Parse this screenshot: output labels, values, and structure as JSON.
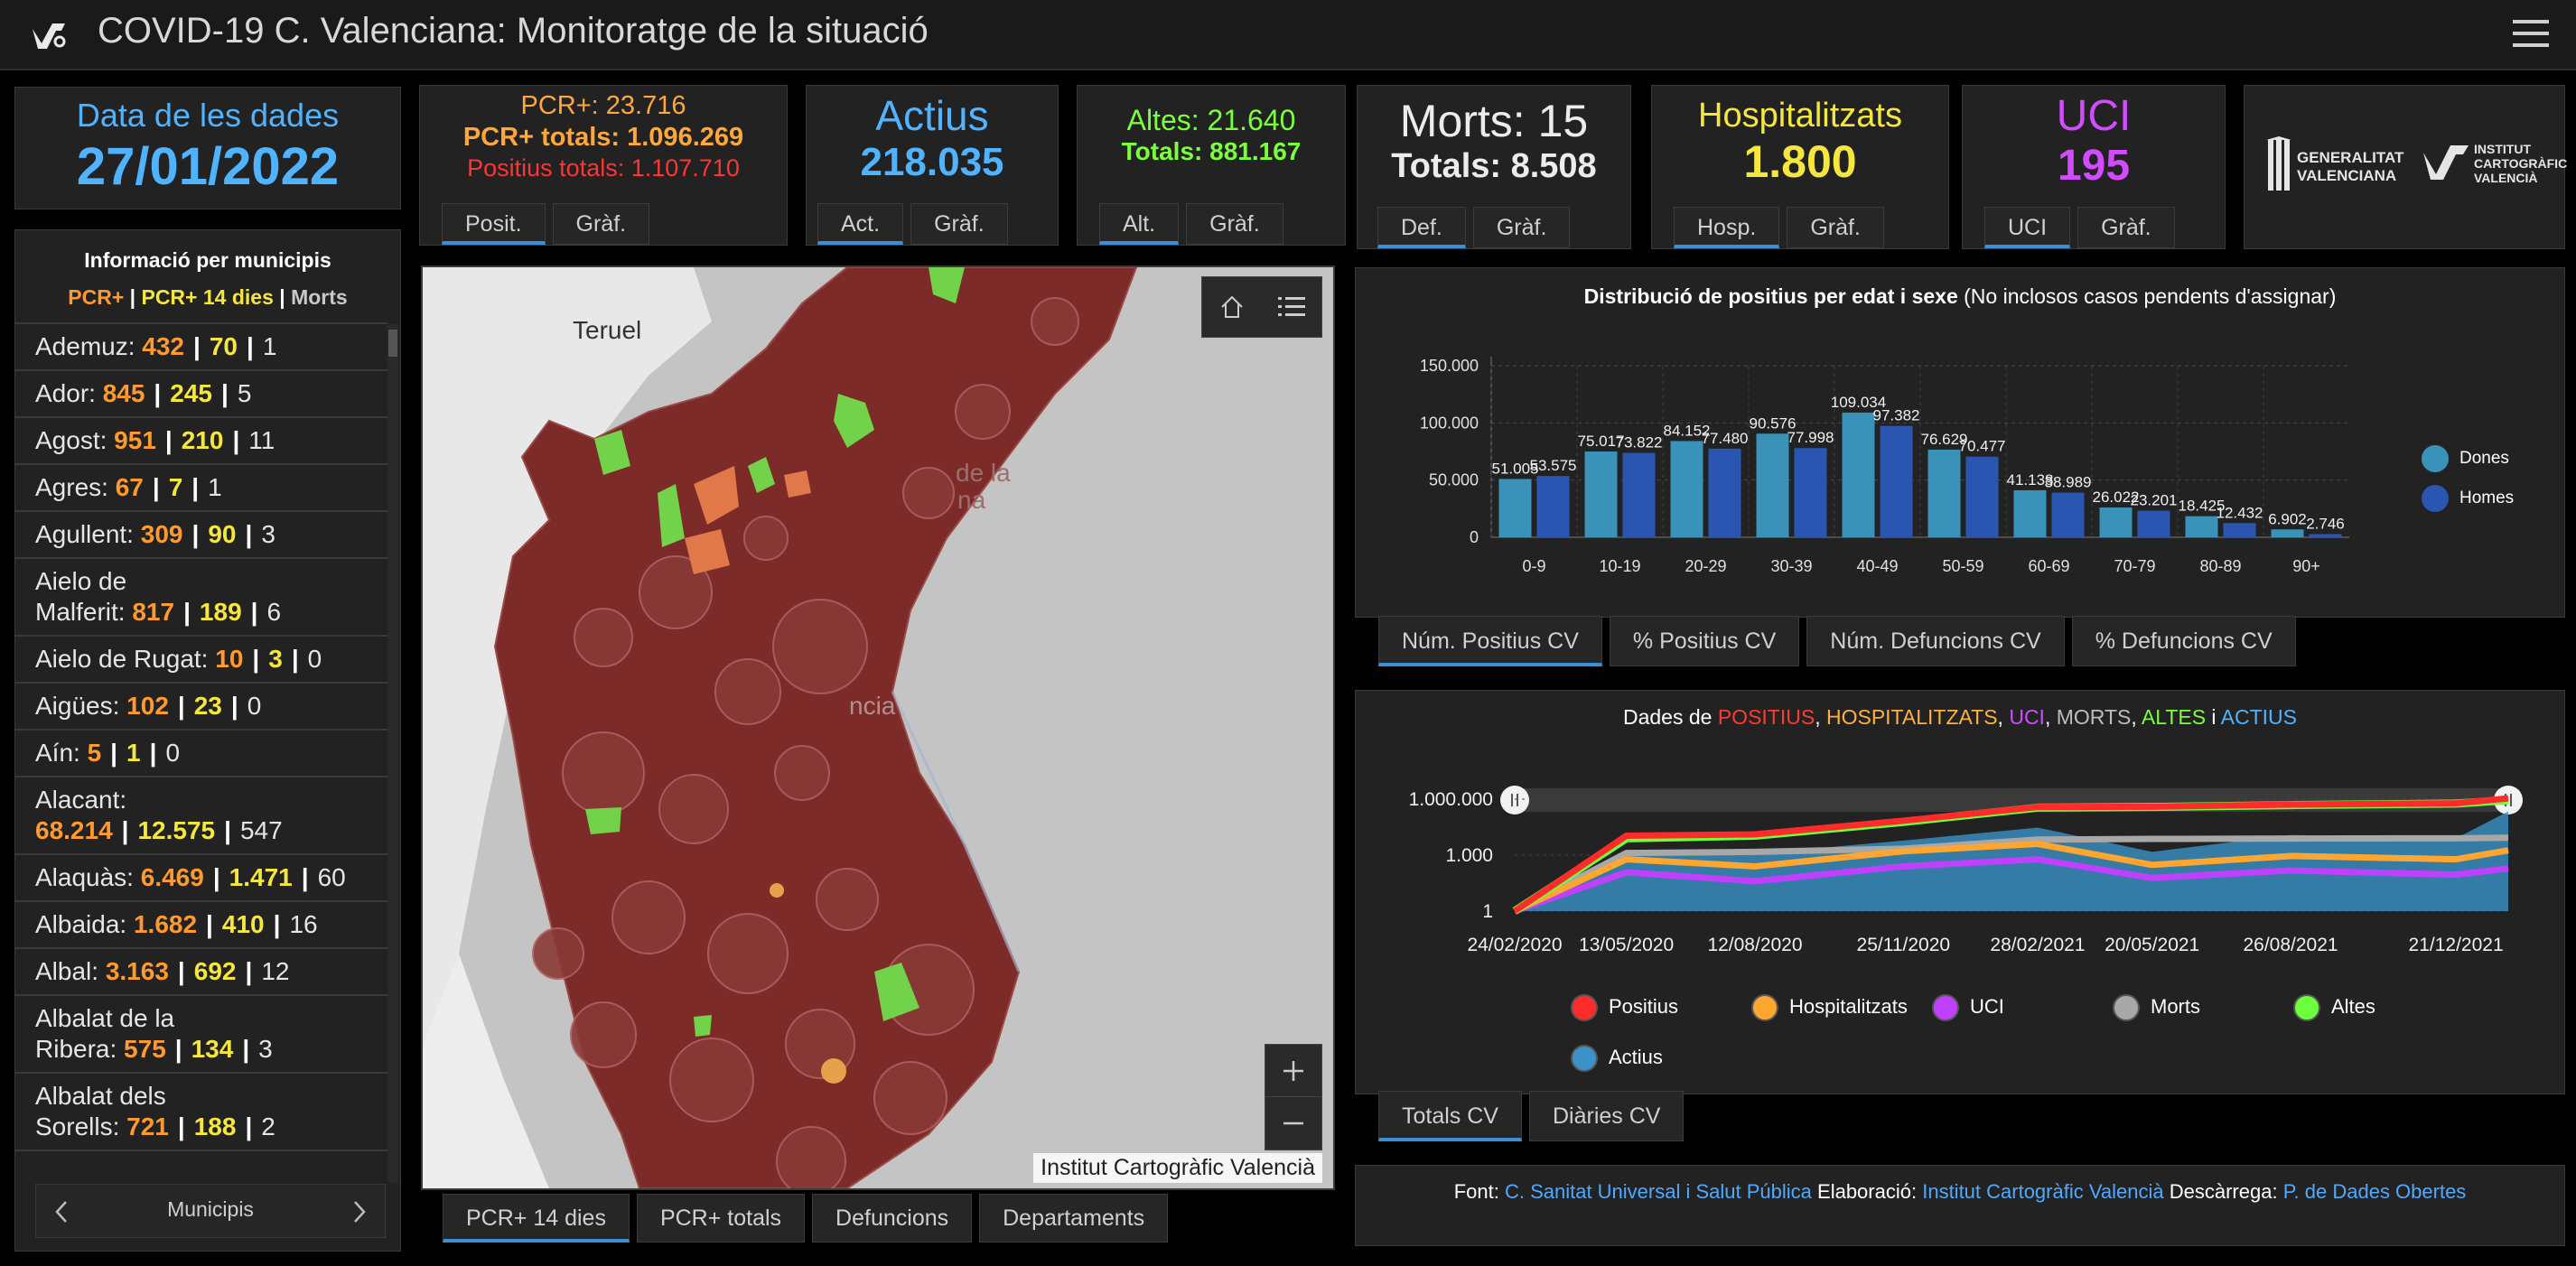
{
  "app": {
    "title": "COVID-19 C. Valenciana: Monitoratge de la situació"
  },
  "date_card": {
    "label": "Data de les dades",
    "value": "27/01/2022"
  },
  "pcr_card": {
    "line1": "PCR+: 23.716",
    "line2": "PCR+ totals: 1.096.269",
    "line3": "Positius totals: 1.107.710",
    "tabs": [
      "Posit.",
      "Gràf."
    ]
  },
  "actius_card": {
    "label": "Actius",
    "value": "218.035",
    "tabs": [
      "Act.",
      "Gràf."
    ]
  },
  "altes_card": {
    "line1": "Altes: 21.640",
    "line2": "Totals: 881.167",
    "tabs": [
      "Alt.",
      "Gràf."
    ]
  },
  "morts_card": {
    "line1": "Morts: 15",
    "line2": "Totals: 8.508",
    "tabs": [
      "Def.",
      "Gràf."
    ]
  },
  "hosp_card": {
    "label": "Hospitalitzats",
    "value": "1.800",
    "tabs": [
      "Hosp.",
      "Gràf."
    ]
  },
  "uci_card": {
    "label": "UCI",
    "value": "195",
    "tabs": [
      "UCI",
      "Gràf."
    ]
  },
  "logos": {
    "gva": "GENERALITAT VALENCIANA",
    "icv_1": "INSTITUT",
    "icv_2": "CARTOGRÀFIC",
    "icv_3": "VALENCIÀ"
  },
  "muni_panel": {
    "title": "Informació per municipis",
    "legend": {
      "pcr": "PCR+",
      "pcr14": "PCR+ 14 dies",
      "morts": "Morts",
      "sep": "|"
    },
    "rows": [
      {
        "name": "Ademuz:",
        "pcr": "432",
        "pcr14": "70",
        "morts": "1"
      },
      {
        "name": "Ador:",
        "pcr": "845",
        "pcr14": "245",
        "morts": "5"
      },
      {
        "name": "Agost:",
        "pcr": "951",
        "pcr14": "210",
        "morts": "11"
      },
      {
        "name": "Agres:",
        "pcr": "67",
        "pcr14": "7",
        "morts": "1"
      },
      {
        "name": "Agullent:",
        "pcr": "309",
        "pcr14": "90",
        "morts": "3"
      },
      {
        "name": "Aielo de",
        "name2": "Malferit:",
        "pcr": "817",
        "pcr14": "189",
        "morts": "6"
      },
      {
        "name": "Aielo de Rugat:",
        "pcr": "10",
        "pcr14": "3",
        "morts": "0"
      },
      {
        "name": "Aigües:",
        "pcr": "102",
        "pcr14": "23",
        "morts": "0"
      },
      {
        "name": "Aín:",
        "pcr": "5",
        "pcr14": "1",
        "morts": "0"
      },
      {
        "name": "Alacant:",
        "pcr": "68.214",
        "pcr14": "12.575",
        "morts": "547"
      },
      {
        "name": "Alaquàs:",
        "pcr": "6.469",
        "pcr14": "1.471",
        "morts": "60"
      },
      {
        "name": "Albaida:",
        "pcr": "1.682",
        "pcr14": "410",
        "morts": "16"
      },
      {
        "name": "Albal:",
        "pcr": "3.163",
        "pcr14": "692",
        "morts": "12"
      },
      {
        "name": "Albalat de la",
        "name2": "Ribera:",
        "pcr": "575",
        "pcr14": "134",
        "morts": "3"
      },
      {
        "name": "Albalat dels",
        "name2": "Sorells:",
        "pcr": "721",
        "pcr14": "188",
        "morts": "2"
      }
    ],
    "pager_label": "Municipis"
  },
  "map": {
    "labels": {
      "teruel": "Teruel",
      "castello_a": "de la",
      "castello_b": "na",
      "valencia": "ncia"
    },
    "attribution": "Institut Cartogràfic Valencià",
    "tabs": [
      "PCR+ 14 dies",
      "PCR+ totals",
      "Defuncions",
      "Departaments"
    ]
  },
  "age_chart": {
    "title_bold": "Distribució de positius per edat i sexe",
    "title_rest": "(No inclosos casos pendents d'assignar)",
    "legend": [
      "Dones",
      "Homes"
    ],
    "colors": {
      "Dones": "#3a92b8",
      "Homes": "#2a55b0"
    },
    "tabs": [
      "Núm. Positius CV",
      "% Positius CV",
      "Núm. Defuncions CV",
      "% Defuncions CV"
    ]
  },
  "chart_data": [
    {
      "type": "bar",
      "title": "Distribució de positius per edat i sexe (No inclosos casos pendents d'assignar)",
      "categories": [
        "0-9",
        "10-19",
        "20-29",
        "30-39",
        "40-49",
        "50-59",
        "60-69",
        "70-79",
        "80-89",
        "90+"
      ],
      "series": [
        {
          "name": "Dones",
          "values": [
            51005,
            75017,
            84152,
            90576,
            109034,
            76629,
            41138,
            26022,
            18425,
            6902
          ]
        },
        {
          "name": "Homes",
          "values": [
            53575,
            73822,
            77480,
            77998,
            97382,
            70477,
            38989,
            23201,
            12432,
            2746
          ]
        }
      ],
      "value_labels": {
        "Dones": [
          "51.005",
          "75.017",
          "84.152",
          "90.576",
          "109.034",
          "76.629",
          "41.138",
          "26.022",
          "18.425",
          "6.902"
        ],
        "Homes": [
          "53.575",
          "73.822",
          "77.480",
          "77.998",
          "97.382",
          "70.477",
          "38.989",
          "23.201",
          "12.432",
          "2.746"
        ]
      },
      "yticks": [
        "0",
        "50.000",
        "100.000",
        "150.000"
      ],
      "ylim": [
        0,
        150000
      ],
      "grid": true,
      "legend_position": "right"
    },
    {
      "type": "area",
      "title": "Dades de POSITIUS, HOSPITALITZATS, UCI, MORTS, ALTES i ACTIUS",
      "y_scale": "log",
      "yticks": [
        "1",
        "1.000",
        "1.000.000"
      ],
      "ylim": [
        1,
        1000000
      ],
      "xticks": [
        "24/02/2020",
        "13/05/2020",
        "12/08/2020",
        "25/11/2020",
        "28/02/2021",
        "20/05/2021",
        "26/08/2021",
        "21/12/2021"
      ],
      "series": [
        {
          "name": "Positius",
          "x": [
            "24/02/2020",
            "13/05/2020",
            "12/08/2020",
            "25/11/2020",
            "28/02/2021",
            "20/05/2021",
            "26/08/2021",
            "21/12/2021",
            "27/01/2022"
          ],
          "values": [
            1,
            11000,
            13000,
            70000,
            380000,
            395000,
            510000,
            600000,
            1107710
          ]
        },
        {
          "name": "Hospitalitzats",
          "x": [
            "24/02/2020",
            "13/05/2020",
            "12/08/2020",
            "25/11/2020",
            "28/02/2021",
            "20/05/2021",
            "26/08/2021",
            "21/12/2021",
            "27/01/2022"
          ],
          "values": [
            1,
            600,
            250,
            1600,
            4000,
            300,
            900,
            600,
            1800
          ]
        },
        {
          "name": "UCI",
          "x": [
            "24/02/2020",
            "13/05/2020",
            "12/08/2020",
            "25/11/2020",
            "28/02/2021",
            "20/05/2021",
            "26/08/2021",
            "21/12/2021",
            "27/01/2022"
          ],
          "values": [
            1,
            120,
            40,
            250,
            600,
            60,
            150,
            90,
            195
          ]
        },
        {
          "name": "Morts",
          "x": [
            "24/02/2020",
            "13/05/2020",
            "12/08/2020",
            "25/11/2020",
            "28/02/2021",
            "20/05/2021",
            "26/08/2021",
            "21/12/2021",
            "27/01/2022"
          ],
          "values": [
            1,
            1300,
            1500,
            2200,
            6800,
            7400,
            7700,
            8000,
            8508
          ]
        },
        {
          "name": "Altes",
          "x": [
            "24/02/2020",
            "13/05/2020",
            "12/08/2020",
            "25/11/2020",
            "28/02/2021",
            "20/05/2021",
            "26/08/2021",
            "21/12/2021",
            "27/01/2022"
          ],
          "values": [
            1,
            8000,
            11000,
            60000,
            350000,
            380000,
            480000,
            580000,
            881167
          ]
        },
        {
          "name": "Actius",
          "x": [
            "24/02/2020",
            "13/05/2020",
            "12/08/2020",
            "25/11/2020",
            "28/02/2021",
            "20/05/2021",
            "26/08/2021",
            "21/12/2021",
            "27/01/2022"
          ],
          "values": [
            1,
            900,
            1200,
            6000,
            30000,
            1500,
            12000,
            8000,
            218035
          ]
        }
      ],
      "grid": true,
      "legend_position": "bottom"
    }
  ],
  "time_chart": {
    "title_prefix": "Dades de",
    "words": [
      {
        "text": "POSITIUS",
        "color": "#ff3b30"
      },
      {
        "text": ", ",
        "color": "#ffffff"
      },
      {
        "text": "HOSPITALITZATS",
        "color": "#ffb040"
      },
      {
        "text": ", ",
        "color": "#ffffff"
      },
      {
        "text": "UCI",
        "color": "#d24bff"
      },
      {
        "text": ", ",
        "color": "#ffffff"
      },
      {
        "text": "MORTS",
        "color": "#bdbdbd"
      },
      {
        "text": ", ",
        "color": "#ffffff"
      },
      {
        "text": "ALTES",
        "color": "#7bff3a"
      },
      {
        "text": " i ",
        "color": "#ffffff"
      },
      {
        "text": "ACTIUS",
        "color": "#4fb3ff"
      }
    ],
    "legend": [
      {
        "name": "Positius",
        "color": "#ff2b2b"
      },
      {
        "name": "Hospitalitzats",
        "color": "#ffa630"
      },
      {
        "name": "UCI",
        "color": "#c040ff"
      },
      {
        "name": "Morts",
        "color": "#a8a8a8"
      },
      {
        "name": "Altes",
        "color": "#6cff3c"
      },
      {
        "name": "Actius",
        "color": "#3a92c8"
      }
    ],
    "tabs": [
      "Totals CV",
      "Diàries CV"
    ]
  },
  "footer": {
    "font_label": "Font:",
    "font_link": "C. Sanitat Universal i Salut Pública",
    "elab_label": "Elaboració:",
    "elab_link": "Institut Cartogràfic Valencià",
    "desc_label": "Descàrrega:",
    "desc_link": "P. de Dades Obertes"
  }
}
